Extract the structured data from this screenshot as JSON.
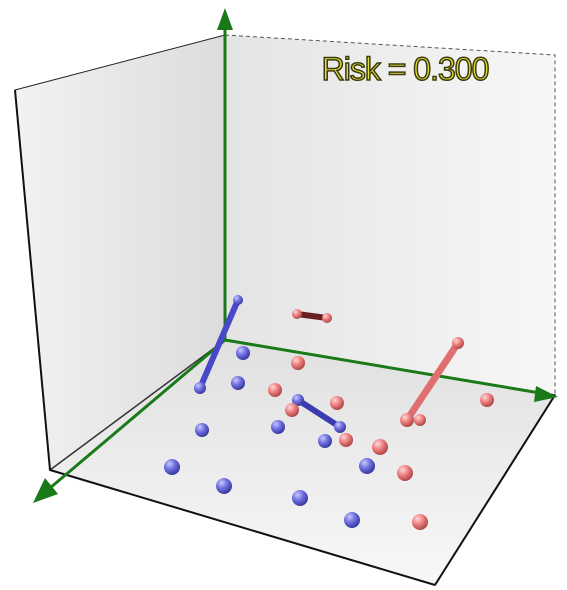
{
  "title": "Risk = 0.300"
}
